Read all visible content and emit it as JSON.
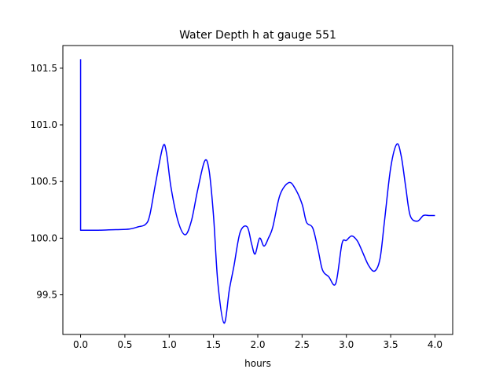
{
  "chart_data": {
    "type": "line",
    "title": "Water Depth h at gauge 551",
    "xlabel": "hours",
    "ylabel": "",
    "xlim": [
      -0.2,
      4.2
    ],
    "ylim": [
      99.15,
      101.7
    ],
    "x_ticks": [
      0.0,
      0.5,
      1.0,
      1.5,
      2.0,
      2.5,
      3.0,
      3.5,
      4.0
    ],
    "x_tick_labels": [
      "0.0",
      "0.5",
      "1.0",
      "1.5",
      "2.0",
      "2.5",
      "3.0",
      "3.5",
      "4.0"
    ],
    "y_ticks": [
      99.5,
      100.0,
      100.5,
      101.0,
      101.5
    ],
    "y_tick_labels": [
      "99.5",
      "100.0",
      "100.5",
      "101.0",
      "101.5"
    ],
    "grid": false,
    "legend": "none",
    "series": [
      {
        "color": "#0000ff",
        "x": [
          0.0,
          0.0,
          0.2,
          0.4,
          0.55,
          0.65,
          0.73,
          0.78,
          0.85,
          0.93,
          0.97,
          1.02,
          1.1,
          1.18,
          1.25,
          1.32,
          1.4,
          1.45,
          1.5,
          1.55,
          1.62,
          1.68,
          1.73,
          1.8,
          1.88,
          1.93,
          1.97,
          2.02,
          2.07,
          2.12,
          2.17,
          2.25,
          2.35,
          2.42,
          2.5,
          2.55,
          2.62,
          2.68,
          2.73,
          2.8,
          2.88,
          2.95,
          3.0,
          3.06,
          3.12,
          3.17,
          3.25,
          3.32,
          3.38,
          3.43,
          3.5,
          3.57,
          3.62,
          3.67,
          3.72,
          3.8,
          3.87,
          3.93,
          3.97,
          4.0
        ],
        "y": [
          101.58,
          100.07,
          100.07,
          100.075,
          100.08,
          100.1,
          100.12,
          100.2,
          100.5,
          100.81,
          100.75,
          100.45,
          100.15,
          100.03,
          100.15,
          100.42,
          100.68,
          100.6,
          100.2,
          99.6,
          99.25,
          99.55,
          99.75,
          100.05,
          100.1,
          99.95,
          99.86,
          100.0,
          99.93,
          100.0,
          100.1,
          100.38,
          100.49,
          100.44,
          100.3,
          100.14,
          100.09,
          99.9,
          99.72,
          99.66,
          99.6,
          99.95,
          99.98,
          100.02,
          99.98,
          99.9,
          99.76,
          99.71,
          99.82,
          100.15,
          100.62,
          100.83,
          100.72,
          100.45,
          100.2,
          100.15,
          100.2,
          100.2,
          100.2,
          100.2
        ]
      }
    ]
  }
}
